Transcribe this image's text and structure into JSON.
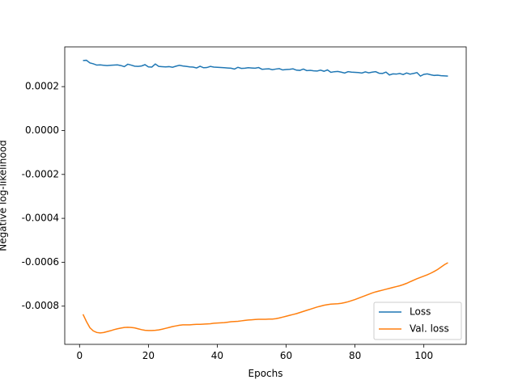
{
  "chart_data": {
    "type": "line",
    "xlabel": "Epochs",
    "ylabel": "Negative log-likelihood",
    "x": [
      1,
      2,
      3,
      4,
      5,
      6,
      7,
      8,
      9,
      10,
      11,
      12,
      13,
      14,
      15,
      16,
      17,
      18,
      19,
      20,
      21,
      22,
      23,
      24,
      25,
      26,
      27,
      28,
      29,
      30,
      31,
      32,
      33,
      34,
      35,
      36,
      37,
      38,
      39,
      40,
      41,
      42,
      43,
      44,
      45,
      46,
      47,
      48,
      49,
      50,
      51,
      52,
      53,
      54,
      55,
      56,
      57,
      58,
      59,
      60,
      61,
      62,
      63,
      64,
      65,
      66,
      67,
      68,
      69,
      70,
      71,
      72,
      73,
      74,
      75,
      76,
      77,
      78,
      79,
      80,
      81,
      82,
      83,
      84,
      85,
      86,
      87,
      88,
      89,
      90,
      91,
      92,
      93,
      94,
      95,
      96,
      97,
      98,
      99,
      100,
      101,
      102,
      103,
      104,
      105,
      106,
      107
    ],
    "series": [
      {
        "name": "Loss",
        "color": "#1f77b4",
        "values": [
          0.000319,
          0.00032,
          0.000308,
          0.000304,
          0.000298,
          0.000299,
          0.000297,
          0.000296,
          0.000297,
          0.000298,
          0.000299,
          0.000296,
          0.000291,
          0.000302,
          0.000298,
          0.000293,
          0.000292,
          0.000294,
          0.0003,
          0.00029,
          0.000289,
          0.000303,
          0.000292,
          0.000291,
          0.00029,
          0.000291,
          0.000288,
          0.000293,
          0.000297,
          0.000294,
          0.000292,
          0.00029,
          0.000289,
          0.000285,
          0.000293,
          0.000286,
          0.000287,
          0.000292,
          0.000289,
          0.000288,
          0.000287,
          0.000286,
          0.000285,
          0.000284,
          0.00028,
          0.000288,
          0.000283,
          0.000284,
          0.000286,
          0.000285,
          0.000284,
          0.000287,
          0.000279,
          0.00028,
          0.000281,
          0.000277,
          0.00028,
          0.000282,
          0.000276,
          0.000278,
          0.000279,
          0.000281,
          0.000275,
          0.000274,
          0.00028,
          0.000273,
          0.000274,
          0.000272,
          0.000271,
          0.000275,
          0.00027,
          0.000276,
          0.000265,
          0.000268,
          0.000269,
          0.000266,
          0.000262,
          0.000268,
          0.000266,
          0.000265,
          0.000264,
          0.000262,
          0.000267,
          0.000263,
          0.000266,
          0.000268,
          0.000261,
          0.00026,
          0.000266,
          0.000253,
          0.000258,
          0.000257,
          0.00026,
          0.000255,
          0.000262,
          0.000257,
          0.00026,
          0.000264,
          0.000248,
          0.000256,
          0.000258,
          0.000254,
          0.000251,
          0.000252,
          0.00025,
          0.000249,
          0.000248
        ]
      },
      {
        "name": "Val. loss",
        "color": "#ff7f0e",
        "values": [
          -0.000837,
          -0.00087,
          -0.000898,
          -0.000913,
          -0.00092,
          -0.000922,
          -0.00092,
          -0.000916,
          -0.000912,
          -0.000907,
          -0.000903,
          -0.0009,
          -0.000897,
          -0.000896,
          -0.000897,
          -0.000899,
          -0.000903,
          -0.000907,
          -0.00091,
          -0.000911,
          -0.000911,
          -0.00091,
          -0.000908,
          -0.000905,
          -0.000901,
          -0.000897,
          -0.000893,
          -0.00089,
          -0.000887,
          -0.000885,
          -0.000885,
          -0.000885,
          -0.000884,
          -0.000883,
          -0.000883,
          -0.000882,
          -0.000881,
          -0.00088,
          -0.000878,
          -0.000877,
          -0.000876,
          -0.000875,
          -0.000873,
          -0.000871,
          -0.00087,
          -0.000869,
          -0.000867,
          -0.000865,
          -0.000863,
          -0.000862,
          -0.000861,
          -0.00086,
          -0.00086,
          -0.00086,
          -0.000859,
          -0.000859,
          -0.000857,
          -0.000854,
          -0.00085,
          -0.000846,
          -0.000842,
          -0.000838,
          -0.000834,
          -0.000829,
          -0.000824,
          -0.000819,
          -0.000814,
          -0.000809,
          -0.000804,
          -0.0008,
          -0.000796,
          -0.000793,
          -0.000791,
          -0.00079,
          -0.000789,
          -0.000787,
          -0.000784,
          -0.00078,
          -0.000775,
          -0.00077,
          -0.000764,
          -0.000758,
          -0.000752,
          -0.000746,
          -0.00074,
          -0.000735,
          -0.000731,
          -0.000727,
          -0.000723,
          -0.000719,
          -0.000715,
          -0.000711,
          -0.000707,
          -0.000702,
          -0.000696,
          -0.000689,
          -0.000682,
          -0.000675,
          -0.000669,
          -0.000663,
          -0.000657,
          -0.00065,
          -0.000642,
          -0.000633,
          -0.000622,
          -0.000611,
          -0.000602
        ]
      }
    ],
    "xlim": [
      -4.3,
      112.3
    ],
    "xticks": [
      0,
      20,
      40,
      60,
      80,
      100
    ],
    "ylim": [
      -0.000974,
      0.000381
    ],
    "yticks": [
      -0.0008,
      -0.0006,
      -0.0004,
      -0.0002,
      {
        "value": 0,
        "label": "0.0000"
      },
      0.0002
    ],
    "legend": "lower right"
  }
}
